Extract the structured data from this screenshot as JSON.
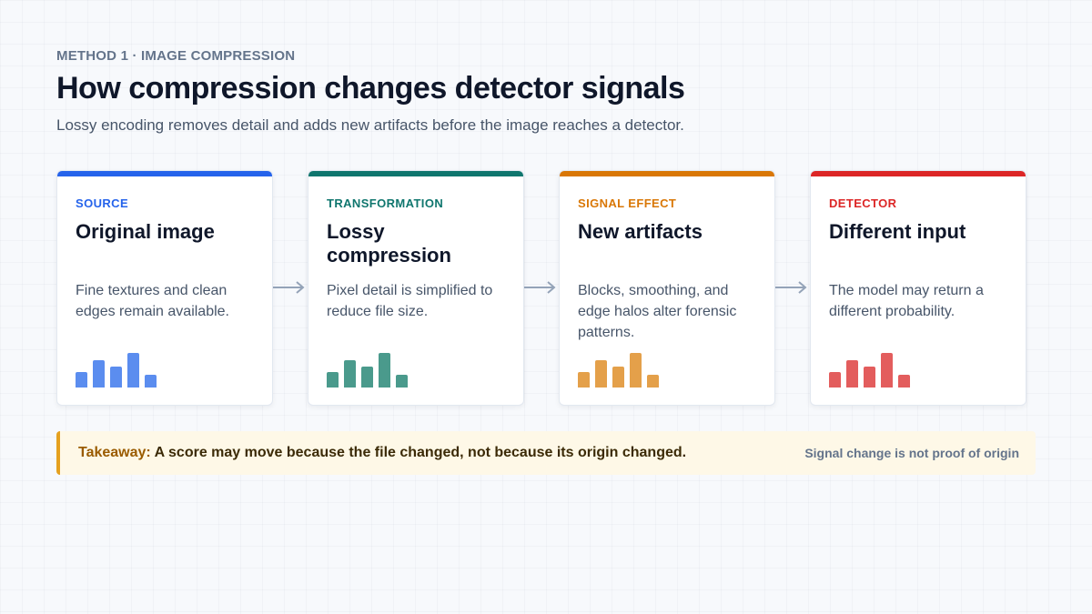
{
  "header": {
    "eyebrow": "METHOD 1 · IMAGE COMPRESSION",
    "title": "How compression changes detector signals",
    "subtitle": "Lossy encoding removes detail and adds new artifacts before the image reaches a detector."
  },
  "cards": [
    {
      "label": "SOURCE",
      "heading": "Original image",
      "description": "Fine textures and clean edges remain available.",
      "accent": "#2563eb",
      "bar_color": "#5b8def"
    },
    {
      "label": "TRANSFORMATION",
      "heading": "Lossy compression",
      "description": "Pixel detail is simplified to reduce file size.",
      "accent": "#0f766e",
      "bar_color": "#4a9a8c"
    },
    {
      "label": "SIGNAL EFFECT",
      "heading": "New artifacts",
      "description": "Blocks, smoothing, and edge halos alter forensic patterns.",
      "accent": "#d97706",
      "bar_color": "#e4a04a"
    },
    {
      "label": "DETECTOR",
      "heading": "Different input",
      "description": "The model may return a different probability.",
      "accent": "#dc2626",
      "bar_color": "#e35d5d"
    }
  ],
  "bar_levels": [
    0.45,
    0.8,
    0.6,
    1.0,
    0.38
  ],
  "takeaway": {
    "lead": "Takeaway:",
    "text": "A score may move because the file changed, not because its origin changed.",
    "note": "Signal change is not proof of origin",
    "accent": "#e5a11f"
  }
}
